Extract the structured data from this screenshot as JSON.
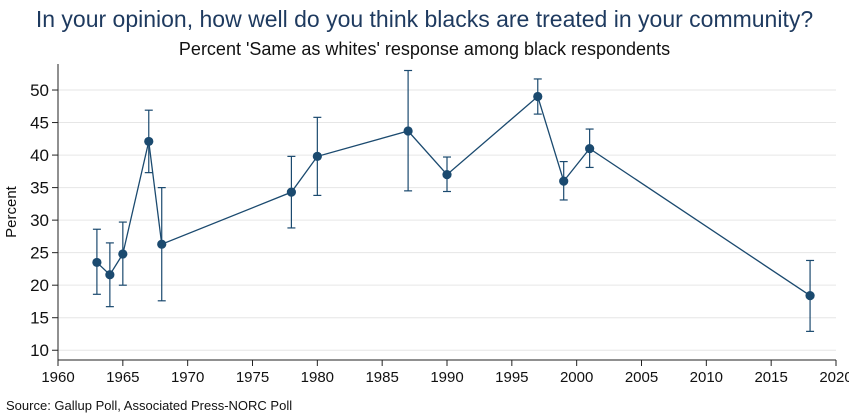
{
  "chart_data": {
    "type": "line",
    "title": "In your opinion, how well do you think blacks are treated in your community?",
    "subtitle": "Percent 'Same as whites' response among black respondents",
    "xlabel": "",
    "ylabel": "Percent",
    "source": "Source: Gallup Poll, Associated Press-NORC Poll",
    "xlim": [
      1960,
      2020
    ],
    "ylim": [
      8.5,
      54
    ],
    "x_ticks": [
      1960,
      1965,
      1970,
      1975,
      1980,
      1985,
      1990,
      1995,
      2000,
      2005,
      2010,
      2015,
      2020
    ],
    "y_ticks": [
      10,
      15,
      20,
      25,
      30,
      35,
      40,
      45,
      50
    ],
    "grid": "horizontal",
    "series": [
      {
        "x": [
          1963,
          1964,
          1965,
          1967,
          1968,
          1978,
          1980,
          1987,
          1990,
          1997,
          1999,
          2001,
          2018
        ],
        "y": [
          23.5,
          21.6,
          24.8,
          42.1,
          26.3,
          34.3,
          39.8,
          43.7,
          37.0,
          49.0,
          36.0,
          41.0,
          18.4
        ],
        "lower": [
          18.6,
          16.7,
          20.0,
          37.3,
          17.6,
          28.8,
          33.8,
          34.5,
          34.4,
          46.3,
          33.1,
          38.1,
          12.9
        ],
        "upper": [
          28.6,
          26.5,
          29.7,
          46.9,
          35.0,
          39.8,
          45.8,
          53.0,
          39.7,
          51.7,
          39.0,
          44.0,
          23.8
        ]
      }
    ],
    "colors": {
      "series": "#1b4a6f",
      "title": "#1e3a5f",
      "grid": "#e6e6e6",
      "axis": "#222222"
    }
  }
}
